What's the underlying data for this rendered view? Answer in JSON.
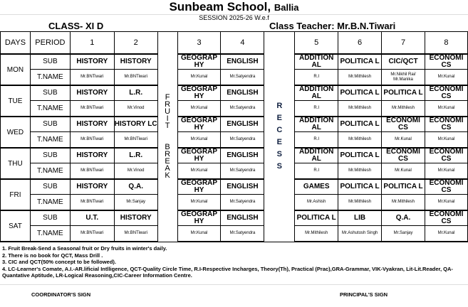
{
  "header": {
    "school": "Sunbeam School,",
    "city": "Ballia",
    "session": "SESSION 2025-26 W.e.f",
    "class": "CLASS- XI D",
    "class_teacher": "Class Teacher:  Mr.B.N.Tiwari"
  },
  "table": {
    "col_days": "DAYS",
    "col_period": "PERIOD",
    "periods": [
      "1",
      "2",
      "3",
      "4",
      "5",
      "6",
      "7",
      "8"
    ],
    "sub_label": "SUB",
    "tname_label": "T.NAME",
    "fruit_break": [
      "F",
      "R",
      "U",
      "I",
      "T",
      "",
      "",
      "B",
      "R",
      "E",
      "A",
      "K"
    ],
    "recess": [
      "R",
      "E",
      "C",
      "E",
      "S",
      "S"
    ],
    "days": [
      {
        "day": "MON",
        "subjects": [
          "HISTORY",
          "HISTORY",
          "GEOGRAP HY",
          "ENGLISH",
          "ADDITION AL",
          "POLITICA L",
          "CIC/QCT",
          "ECONOMI CS"
        ],
        "teachers": [
          "Mr.BNTiwari",
          "Mr.BNTiwari",
          "Mr.Kunal",
          "Mr.Satyendra",
          "R.I",
          "Mr.Mithilesh",
          "Mr.Nikhil Rai/ Mr.Manika",
          "Mr.Kunal"
        ]
      },
      {
        "day": "TUE",
        "subjects": [
          "HISTORY",
          "L.R.",
          "GEOGRAP HY",
          "ENGLISH",
          "ADDITION AL",
          "POLITICA L",
          "POLITICA L",
          "ECONOMI CS"
        ],
        "teachers": [
          "Mr.BNTiwari",
          "Mr.Vinod",
          "Mr.Kunal",
          "Mr.Satyendra",
          "R.I",
          "Mr.Mithilesh",
          "Mr.Mithilesh",
          "Mr.Kunal"
        ]
      },
      {
        "day": "WED",
        "subjects": [
          "HISTORY",
          "HISTORY LC",
          "GEOGRAP HY",
          "ENGLISH",
          "ADDITION AL",
          "POLITICA L",
          "ECONOMI CS",
          "ECONOMI CS"
        ],
        "teachers": [
          "Mr.BNTiwari",
          "Mr.BNTiwari",
          "Mr.Kunal",
          "Mr.Satyendra",
          "R.I",
          "Mr.Mithilesh",
          "Mr.Kunal",
          "Mr.Kunal"
        ]
      },
      {
        "day": "THU",
        "subjects": [
          "HISTORY",
          "L.R.",
          "GEOGRAP HY",
          "ENGLISH",
          "ADDITION AL",
          "POLITICA L",
          "ECONOMI CS",
          "ECONOMI CS"
        ],
        "teachers": [
          "Mr.BNTiwari",
          "Mr.Vinod",
          "Mr.Kunal",
          "Mr.Satyendra",
          "R.I",
          "Mr.Mithilesh",
          "Mr.Kunal",
          "Mr.Kunal"
        ]
      },
      {
        "day": "FRI",
        "subjects": [
          "HISTORY",
          "Q.A.",
          "GEOGRAP HY",
          "ENGLISH",
          "GAMES",
          "POLITICA L",
          "POLITICA L",
          "ECONOMI CS"
        ],
        "teachers": [
          "Mr.BNTiwari",
          "Mr.Sanjay",
          "Mr.Kunal",
          "Mr.Satyendra",
          "Mr.Ashish",
          "Mr.Mithilesh",
          "Mr.Mithilesh",
          "Mr.Kunal"
        ]
      },
      {
        "day": "SAT",
        "subjects": [
          "U.T.",
          "HISTORY",
          "GEOGRAP HY",
          "ENGLISH",
          "POLITICA L",
          "LIB",
          "Q.A.",
          "ECONOMI CS"
        ],
        "teachers": [
          "Mr.BNTiwari",
          "Mr.BNTiwari",
          "Mr.Kunal",
          "Mr.Satyendra",
          "Mr.Mithilesh",
          "Mr.Ashutosh Singh",
          "Mr.Sanjay",
          "Mr.Kunal"
        ]
      }
    ]
  },
  "notes": [
    "1. Fruit Break-Send a Seasonal fruit or Dry fruits in winter's daily.",
    "2. There is no book for QCT, Mass Drill .",
    "3. CIC and QCT(50% concept to be followed).",
    "4. LC-Learner's Comate, A.I.-AR.lificial Intlligence, QCT-Quality Circle Time, R.I-Respective Incharges, Theory(Th), Practical (Prac),GRA-Grammar, VIK-Vyakran, Lit-Lit.Reader, QA-Quantative Aptitude, LR-Logical Reasoning,CIC-Career Information Centre."
  ],
  "signatures": {
    "coordinator": "COORDINATOR'S SIGN",
    "principal": "PRINCIPAL'S SIGN"
  }
}
